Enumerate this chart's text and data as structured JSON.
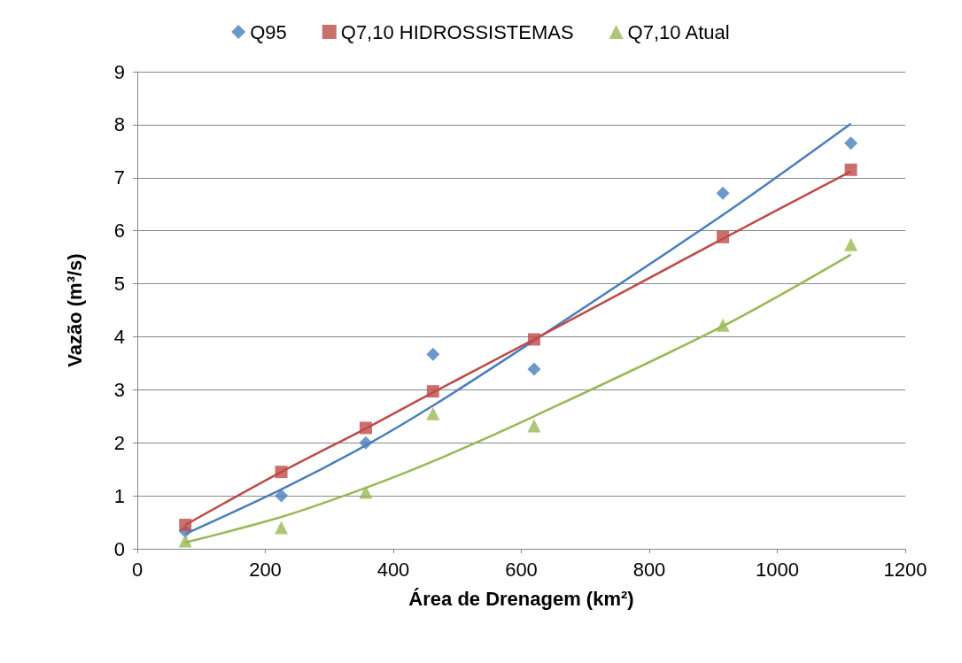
{
  "chart_data": {
    "type": "scatter",
    "xlabel": "Área de Drenagem (km²)",
    "ylabel": "Vazão (m³/s)",
    "xlim": [
      0,
      1200
    ],
    "xticks": [
      0,
      200,
      400,
      600,
      800,
      1000,
      1200
    ],
    "ylim": [
      0,
      9
    ],
    "yticks": [
      0,
      1,
      2,
      3,
      4,
      5,
      6,
      7,
      8,
      9
    ],
    "grid": "y",
    "legend": "top",
    "series": [
      {
        "name": "Q95",
        "color": "#4a7ebb",
        "marker": "diamond",
        "x": [
          75,
          225,
          357,
          462,
          620,
          915,
          1115
        ],
        "values": [
          0.33,
          1.0,
          2.0,
          3.67,
          3.39,
          6.71,
          7.65
        ]
      },
      {
        "name": "Q7,10 HIDROSSISTEMAS",
        "color": "#be4b48",
        "marker": "square",
        "x": [
          75,
          225,
          357,
          462,
          620,
          915,
          1115
        ],
        "values": [
          0.45,
          1.45,
          2.28,
          2.97,
          3.95,
          5.88,
          7.15
        ]
      },
      {
        "name": "Q7,10 Atual",
        "color": "#98b954",
        "marker": "triangle",
        "x": [
          75,
          225,
          357,
          462,
          620,
          915,
          1115
        ],
        "values": [
          0.15,
          0.4,
          1.07,
          2.55,
          2.32,
          4.22,
          5.74
        ]
      },
      {
        "type": "line",
        "color": "#4a7ebb",
        "marker": "none",
        "x": [
          75,
          225,
          357,
          462,
          620,
          915,
          1115
        ],
        "values": [
          0.28,
          1.12,
          1.95,
          2.7,
          3.93,
          6.3,
          8.02
        ]
      },
      {
        "type": "line",
        "color": "#be4b48",
        "marker": "none",
        "x": [
          75,
          225,
          357,
          462,
          620,
          915,
          1115
        ],
        "values": [
          0.45,
          1.45,
          2.27,
          2.95,
          3.95,
          5.85,
          7.12
        ]
      },
      {
        "type": "line",
        "color": "#98b954",
        "marker": "none",
        "x": [
          75,
          225,
          357,
          462,
          620,
          915,
          1115
        ],
        "values": [
          0.12,
          0.6,
          1.15,
          1.65,
          2.5,
          4.2,
          5.55
        ]
      }
    ]
  }
}
